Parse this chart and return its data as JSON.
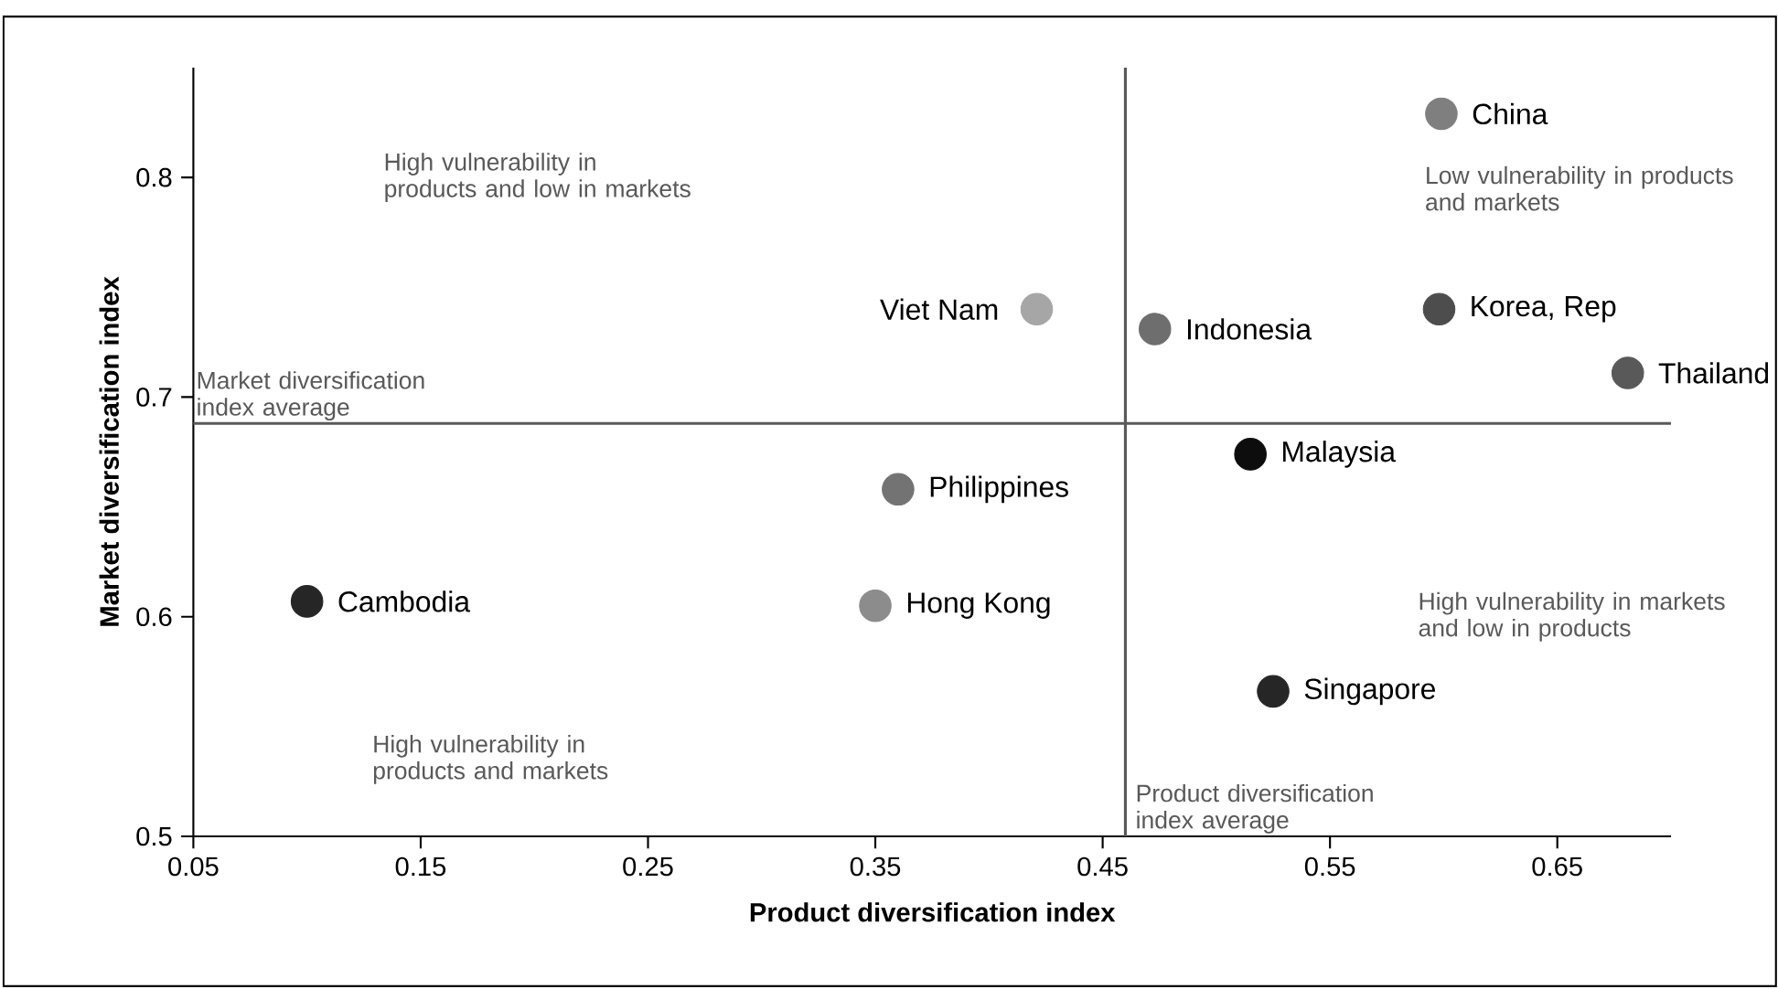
{
  "chart_data": {
    "type": "scatter",
    "xlabel": "Product diversification index",
    "ylabel": "Market diversification index",
    "xlim": [
      0.05,
      0.7
    ],
    "ylim": [
      0.5,
      0.85
    ],
    "xticks": [
      0.05,
      0.15,
      0.25,
      0.35,
      0.45,
      0.55,
      0.65
    ],
    "yticks": [
      0.5,
      0.6,
      0.7,
      0.8
    ],
    "marker": "circle",
    "grid": false,
    "legend": false,
    "series": [
      {
        "name": "China",
        "color": "#7f7f7f",
        "x": [
          0.599
        ],
        "values": [
          0.829
        ]
      },
      {
        "name": "Viet Nam",
        "color": "#a6a6a6",
        "x": [
          0.421
        ],
        "values": [
          0.74
        ]
      },
      {
        "name": "Indonesia",
        "color": "#6e6e6e",
        "x": [
          0.473
        ],
        "values": [
          0.731
        ]
      },
      {
        "name": "Korea, Rep",
        "color": "#4d4d4d",
        "x": [
          0.598
        ],
        "values": [
          0.74
        ]
      },
      {
        "name": "Thailand",
        "color": "#595959",
        "x": [
          0.681
        ],
        "values": [
          0.711
        ]
      },
      {
        "name": "Malaysia",
        "color": "#0d0d0d",
        "x": [
          0.515
        ],
        "values": [
          0.674
        ]
      },
      {
        "name": "Philippines",
        "color": "#737373",
        "x": [
          0.36
        ],
        "values": [
          0.658
        ]
      },
      {
        "name": "Cambodia",
        "color": "#262626",
        "x": [
          0.1
        ],
        "values": [
          0.607
        ]
      },
      {
        "name": "Hong Kong",
        "color": "#8c8c8c",
        "x": [
          0.35
        ],
        "values": [
          0.605
        ]
      },
      {
        "name": "Singapore",
        "color": "#262626",
        "x": [
          0.525
        ],
        "values": [
          0.566
        ]
      }
    ],
    "ref_lines": [
      {
        "axis": "y",
        "value": 0.688,
        "label": "Market diversification index average",
        "color": "#595959"
      },
      {
        "axis": "x",
        "value": 0.46,
        "label": "Product diversification index average",
        "color": "#595959"
      }
    ],
    "annotations": [
      "High vulnerability in products and low in markets",
      "Low vulnerability in products and markets",
      "High vulnerability in markets and low  in products",
      "High vulnerability in products and markets"
    ]
  }
}
